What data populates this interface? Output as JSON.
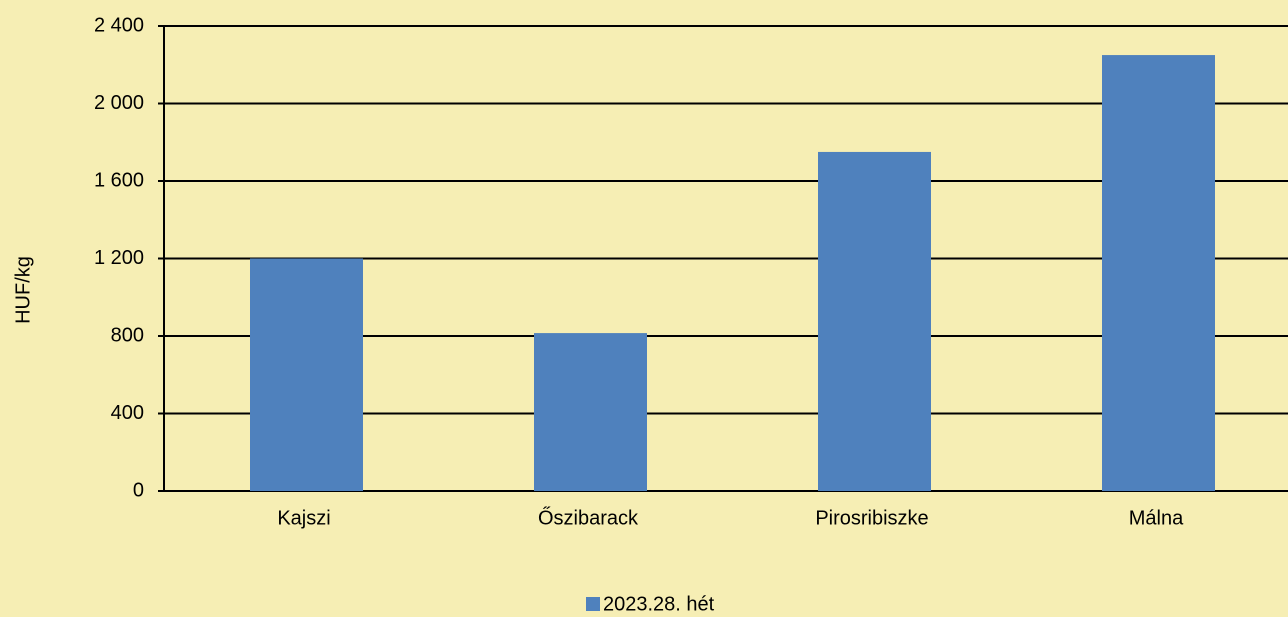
{
  "chart_data": {
    "type": "bar",
    "y_axis_label": "HUF/kg",
    "categories": [
      "Kajszi",
      "Őszibarack",
      "Pirosribiszke",
      "Málna"
    ],
    "series": [
      {
        "name": "2023.28. hét",
        "color": "#4f81bd",
        "values": [
          1200,
          815,
          1750,
          2250
        ]
      }
    ],
    "ylim": [
      0,
      2400
    ],
    "yticks": [
      0,
      400,
      800,
      {
        "value": 1200,
        "label": "1 200"
      },
      {
        "value": 1600,
        "label": "1 600"
      },
      {
        "value": 2000,
        "label": "2 000"
      },
      {
        "value": 2400,
        "label": "2 400"
      }
    ],
    "grid": true,
    "legend": "bottom"
  }
}
